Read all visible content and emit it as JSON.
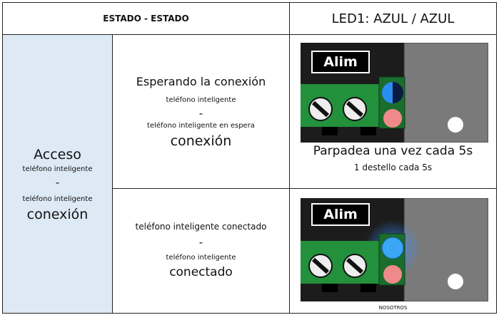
{
  "header": {
    "state": "ESTADO - ESTADO",
    "led": "LED1: AZUL / AZUL"
  },
  "left": {
    "lines": [
      "Acceso",
      "teléfono inteligente",
      "-",
      "teléfono inteligente",
      "conexión"
    ]
  },
  "rows": [
    {
      "state_lines": [
        "Esperando la conexión",
        "teléfono inteligente",
        "-",
        "teléfono inteligente en espera",
        "conexión"
      ],
      "image_label": "Alim",
      "caption": "Parpadea una vez cada 5s",
      "subcaption": "1 destello cada 5s"
    },
    {
      "state_lines": [
        "teléfono inteligente conectado",
        "-",
        "teléfono inteligente",
        "conectado"
      ],
      "image_label": "Alim",
      "caption": "NOSOTROS"
    }
  ]
}
